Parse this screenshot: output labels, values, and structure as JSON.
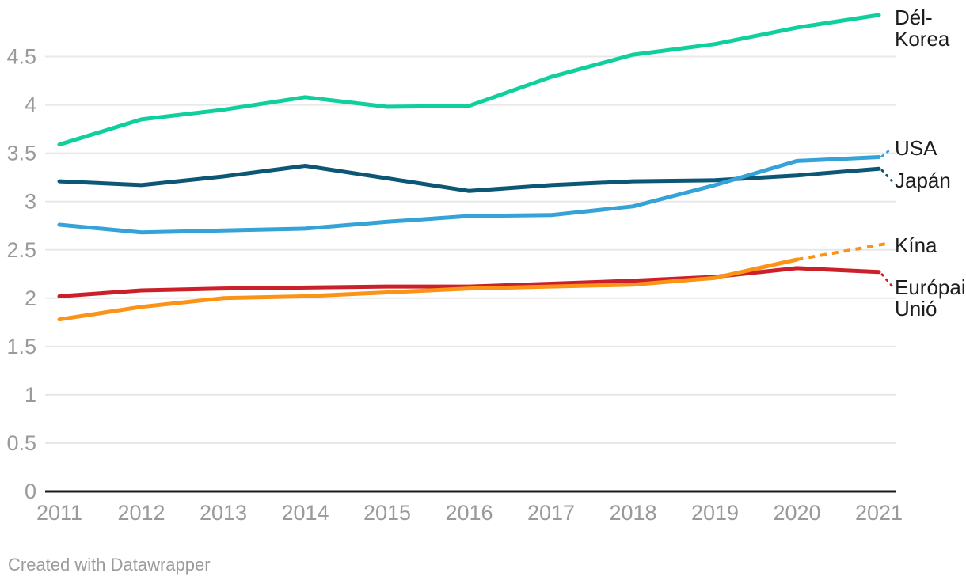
{
  "chart_data": {
    "type": "line",
    "title": "",
    "x": [
      2011,
      2012,
      2013,
      2014,
      2015,
      2016,
      2017,
      2018,
      2019,
      2020,
      2021
    ],
    "x_tick_labels": [
      "2011",
      "2012",
      "2013",
      "2014",
      "2015",
      "2016",
      "2017",
      "2018",
      "2019",
      "2020",
      "2021"
    ],
    "y_ticks": [
      0,
      0.5,
      1,
      1.5,
      2,
      2.5,
      3,
      3.5,
      4,
      4.5
    ],
    "y_tick_labels": [
      "0",
      "0.5",
      "1",
      "1.5",
      "2",
      "2.5",
      "3",
      "3.5",
      "4",
      "4.5"
    ],
    "ylim": [
      0,
      5.0
    ],
    "grid": true,
    "legend_position": "right-end-labels",
    "series": [
      {
        "name": "Dél-Korea",
        "label_lines": [
          "Dél-",
          "Korea"
        ],
        "color": "#0fd09c",
        "style": "solid",
        "connector": false,
        "values": [
          3.59,
          3.85,
          3.95,
          4.08,
          3.98,
          3.99,
          4.29,
          4.52,
          4.63,
          4.8,
          4.93
        ]
      },
      {
        "name": "USA",
        "label_lines": [
          "USA"
        ],
        "color": "#35a2d8",
        "style": "solid",
        "connector": true,
        "values": [
          2.76,
          2.68,
          2.7,
          2.72,
          2.79,
          2.85,
          2.86,
          2.95,
          3.17,
          3.42,
          3.46
        ]
      },
      {
        "name": "Japán",
        "label_lines": [
          "Japán"
        ],
        "color": "#0c5776",
        "style": "solid",
        "connector": true,
        "values": [
          3.21,
          3.17,
          3.26,
          3.37,
          3.24,
          3.11,
          3.17,
          3.21,
          3.22,
          3.27,
          3.34
        ]
      },
      {
        "name": "Kína",
        "label_lines": [
          "Kína"
        ],
        "color": "#fb9317",
        "style": "dashed-last-segment",
        "connector": false,
        "values": [
          1.78,
          1.91,
          2.0,
          2.02,
          2.06,
          2.1,
          2.12,
          2.14,
          2.21,
          2.4,
          2.55
        ]
      },
      {
        "name": "Európai Unió",
        "label_lines": [
          "Európai",
          "Unió"
        ],
        "color": "#cb2029",
        "style": "solid",
        "connector": true,
        "values": [
          2.02,
          2.08,
          2.1,
          2.11,
          2.12,
          2.12,
          2.15,
          2.18,
          2.22,
          2.31,
          2.27
        ]
      }
    ]
  },
  "colors": {
    "background": "#ffffff",
    "gridline": "#e8e8e8",
    "axis_line": "#1a1a1a",
    "tick_text": "#9a9a9a",
    "series_label_text": "#1d1d1d",
    "footer_text": "#9b9b9b"
  },
  "footer": {
    "credit": "Created with Datawrapper"
  }
}
